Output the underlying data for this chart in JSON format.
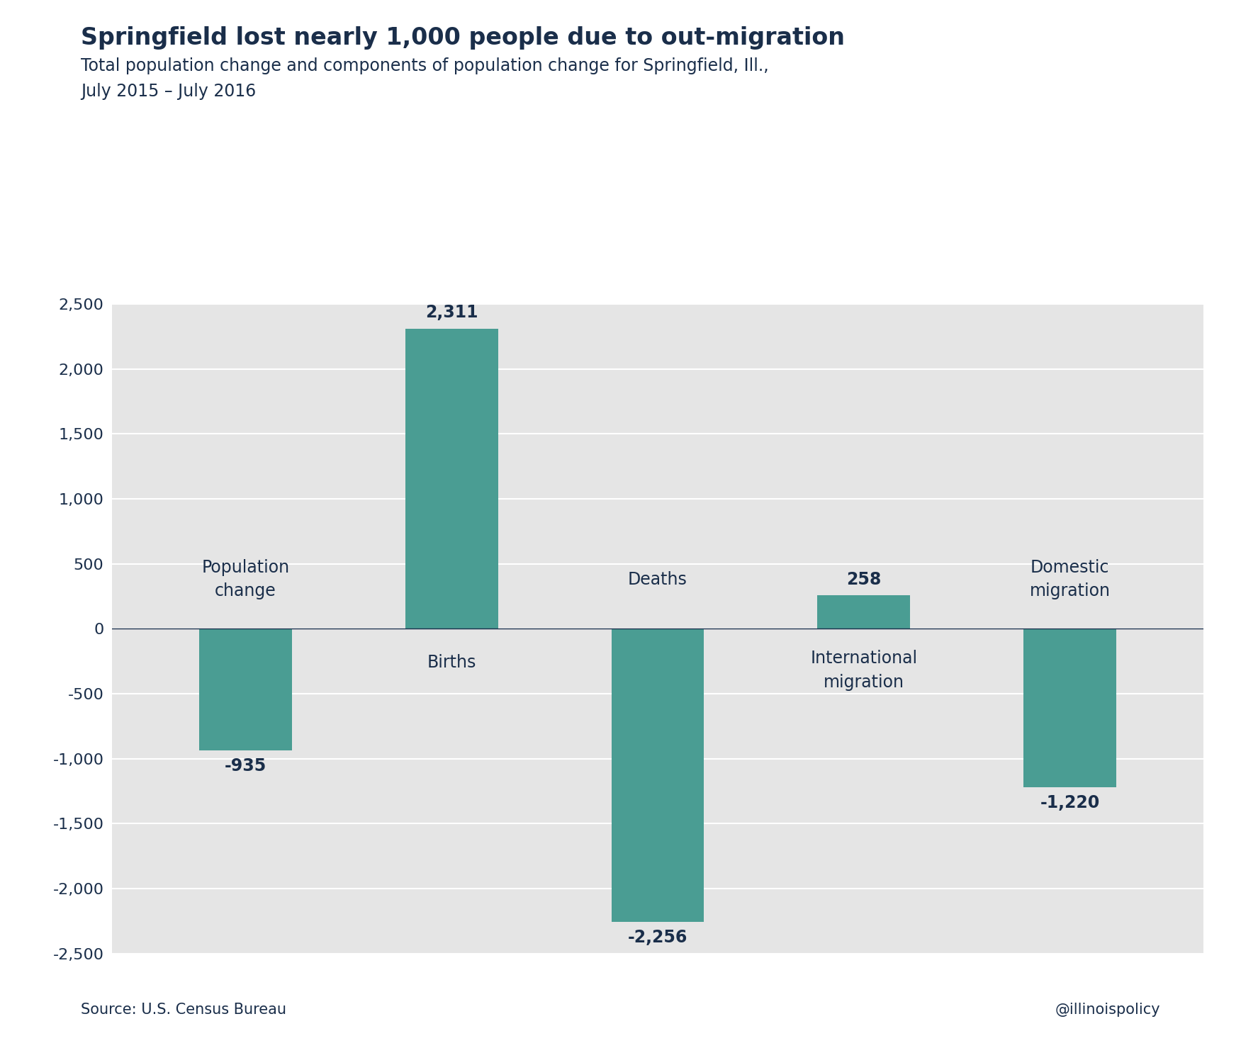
{
  "title": "Springfield lost nearly 1,000 people due to out-migration",
  "subtitle": "Total population change and components of population change for Springfield, Ill.,\nJuly 2015 – July 2016",
  "categories": [
    "Population\nchange",
    "Births",
    "Deaths",
    "International\nmigration",
    "Domestic\nmigration"
  ],
  "values": [
    -935,
    2311,
    -2256,
    258,
    -1220
  ],
  "bar_labels": [
    "-935",
    "2,311",
    "-2,256",
    "258",
    "-1,220"
  ],
  "bar_color": "#4a9d93",
  "fig_bg_color": "#ffffff",
  "plot_bg_color": "#e5e5e5",
  "title_color": "#1a2e4a",
  "grid_color": "#ffffff",
  "zero_line_color": "#1a2e4a",
  "source_text": "Source: U.S. Census Bureau",
  "credit_text": "@illinoispolicy",
  "ylim": [
    -2500,
    2500
  ],
  "yticks": [
    -2500,
    -2000,
    -1500,
    -1000,
    -500,
    0,
    500,
    1000,
    1500,
    2000,
    2500
  ],
  "title_fontsize": 24,
  "subtitle_fontsize": 17,
  "tick_fontsize": 16,
  "bar_label_fontsize": 17,
  "cat_label_fontsize": 17,
  "footer_fontsize": 15,
  "bar_width": 0.45
}
